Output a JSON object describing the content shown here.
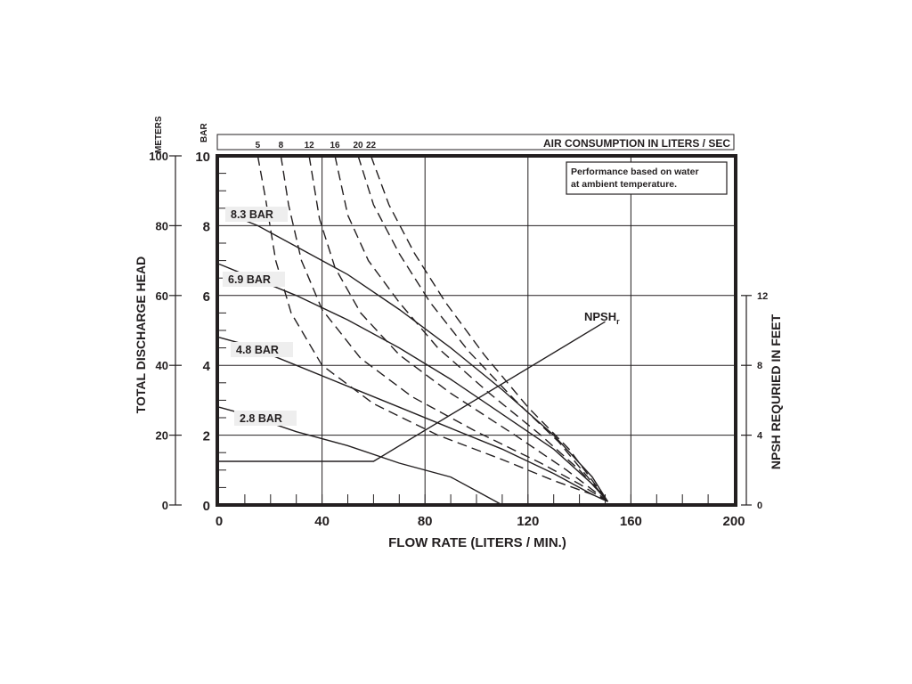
{
  "chart_data": {
    "type": "line",
    "title": "",
    "note_lines": [
      "Performance based on water",
      "at ambient temperature."
    ],
    "top_axis": {
      "title": "AIR CONSUMPTION IN LITERS / SEC",
      "ticks": [
        "5",
        "8",
        "12",
        "16",
        "20",
        "22"
      ]
    },
    "xlabel": "FLOW RATE (LITERS / MIN.)",
    "xlim": [
      0,
      200
    ],
    "x_ticks": [
      "0",
      "40",
      "80",
      "120",
      "160",
      "200"
    ],
    "y_left_unit_meters": "METERS",
    "y_left_unit_bar": "BAR",
    "ylabel": "TOTAL DISCHARGE HEAD",
    "ylim_bar": [
      0,
      10
    ],
    "y_bar_ticks": [
      "0",
      "2",
      "4",
      "6",
      "8",
      "10"
    ],
    "ylim_meters": [
      0,
      100
    ],
    "y_meter_ticks": [
      "0",
      "20",
      "40",
      "60",
      "80",
      "100"
    ],
    "y2label": "NPSH REQURIED IN FEET",
    "y2_ticks": [
      "0",
      "4",
      "8",
      "12"
    ],
    "y2_range_feet": [
      0,
      20
    ],
    "grid": true,
    "pressure_series": [
      {
        "name": "8.3 BAR",
        "x": [
          5,
          15,
          30,
          50,
          70,
          90,
          110,
          130,
          145,
          151
        ],
        "y": [
          8.3,
          8.0,
          7.4,
          6.6,
          5.6,
          4.5,
          3.3,
          2.0,
          0.8,
          0.1
        ]
      },
      {
        "name": "6.9 BAR",
        "x": [
          0,
          10,
          30,
          50,
          70,
          90,
          110,
          130,
          145,
          151
        ],
        "y": [
          6.9,
          6.6,
          6.0,
          5.3,
          4.5,
          3.6,
          2.6,
          1.6,
          0.6,
          0.1
        ]
      },
      {
        "name": "4.8 BAR",
        "x": [
          0,
          10,
          30,
          50,
          70,
          90,
          110,
          130,
          145,
          151
        ],
        "y": [
          4.8,
          4.6,
          4.0,
          3.4,
          2.8,
          2.2,
          1.6,
          0.9,
          0.3,
          0.1
        ]
      },
      {
        "name": "2.8 BAR",
        "x": [
          0,
          10,
          30,
          50,
          70,
          90,
          100,
          110
        ],
        "y": [
          2.8,
          2.6,
          2.1,
          1.7,
          1.2,
          0.8,
          0.4,
          0.0
        ]
      }
    ],
    "air_series": [
      {
        "name": "5",
        "x": [
          15,
          18,
          22,
          28,
          40,
          60,
          85,
          110,
          130,
          145,
          151
        ],
        "y": [
          10,
          8.8,
          7.0,
          5.5,
          4.0,
          2.9,
          2.0,
          1.3,
          0.7,
          0.3,
          0.1
        ]
      },
      {
        "name": "8",
        "x": [
          24,
          27,
          32,
          40,
          55,
          75,
          100,
          125,
          140,
          151
        ],
        "y": [
          10,
          8.6,
          7.0,
          5.6,
          4.2,
          3.1,
          2.1,
          1.2,
          0.6,
          0.1
        ]
      },
      {
        "name": "12",
        "x": [
          35,
          39,
          45,
          55,
          70,
          90,
          115,
          135,
          151
        ],
        "y": [
          10,
          8.2,
          6.8,
          5.5,
          4.3,
          3.2,
          2.0,
          1.0,
          0.1
        ]
      },
      {
        "name": "16",
        "x": [
          45,
          50,
          58,
          70,
          85,
          105,
          125,
          140,
          151
        ],
        "y": [
          10,
          8.3,
          7.0,
          5.8,
          4.5,
          3.2,
          2.0,
          1.0,
          0.1
        ]
      },
      {
        "name": "20",
        "x": [
          54,
          60,
          70,
          82,
          97,
          115,
          132,
          151
        ],
        "y": [
          10,
          8.6,
          7.2,
          5.8,
          4.4,
          3.0,
          1.8,
          0.1
        ]
      },
      {
        "name": "22",
        "x": [
          59,
          66,
          76,
          88,
          103,
          120,
          136,
          151
        ],
        "y": [
          10,
          8.6,
          7.2,
          5.8,
          4.3,
          2.8,
          1.6,
          0.1
        ]
      }
    ],
    "npsh": {
      "name": "NPSH",
      "subscript": "r",
      "x": [
        0,
        60,
        150
      ],
      "y_feet": [
        2.5,
        2.5,
        10.5
      ]
    }
  }
}
